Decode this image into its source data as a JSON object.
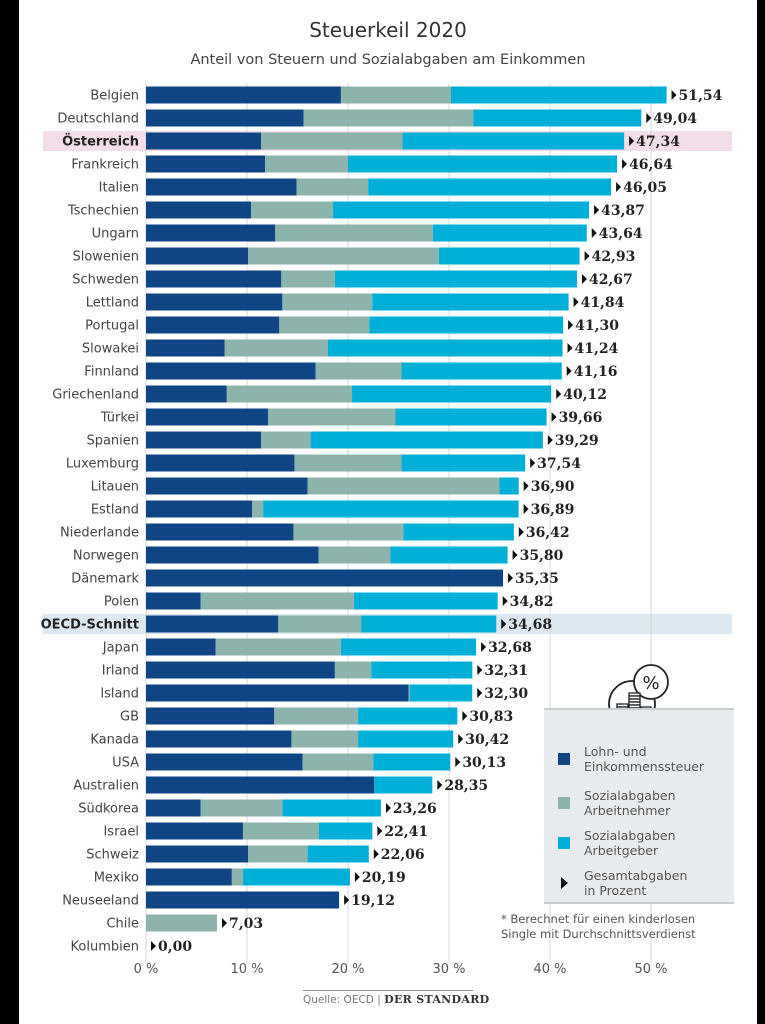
{
  "chart_data": {
    "type": "bar",
    "orientation": "horizontal",
    "stacked": true,
    "title": "Steuerkeil 2020",
    "subtitle": "Anteil von Steuern und Sozialabgaben am Einkommen",
    "xlabel": "",
    "ylabel": "",
    "xlim": [
      0,
      55
    ],
    "xticks": [
      0,
      10,
      20,
      30,
      40,
      50
    ],
    "xtick_labels": [
      "0 %",
      "10 %",
      "20 %",
      "30 %",
      "40 %",
      "50 %"
    ],
    "grid": true,
    "legend_position": "bottom-right",
    "categories": [
      "Belgien",
      "Deutschland",
      "Österreich",
      "Frankreich",
      "Italien",
      "Tschechien",
      "Ungarn",
      "Slowenien",
      "Schweden",
      "Lettland",
      "Portugal",
      "Slowakei",
      "Finnland",
      "Griechenland",
      "Türkei",
      "Spanien",
      "Luxemburg",
      "Litauen",
      "Estland",
      "Niederlande",
      "Norwegen",
      "Dänemark",
      "Polen",
      "OECD-Schnitt",
      "Japan",
      "Irland",
      "Island",
      "GB",
      "Kanada",
      "USA",
      "Australien",
      "Südkorea",
      "Israel",
      "Schweiz",
      "Mexiko",
      "Neuseeland",
      "Chile",
      "Kolumbien"
    ],
    "highlighted": {
      "Österreich": "#f2dde8",
      "OECD-Schnitt": "#dde9f1"
    },
    "series": [
      {
        "name": "Lohn- und Einkommenssteuer",
        "color": "#0f4584",
        "values": [
          19.3,
          15.6,
          11.4,
          11.8,
          14.9,
          10.4,
          12.8,
          10.1,
          13.4,
          13.5,
          13.2,
          7.8,
          16.8,
          8.0,
          12.1,
          11.4,
          14.7,
          16.0,
          10.5,
          14.6,
          17.1,
          35.35,
          5.4,
          13.1,
          6.9,
          18.7,
          26.0,
          12.7,
          14.4,
          15.5,
          22.6,
          5.4,
          9.6,
          10.1,
          8.5,
          19.12,
          0,
          0
        ]
      },
      {
        "name": "Sozialabgaben Arbeitnehmer",
        "color": "#8db3ad",
        "values": [
          10.9,
          16.8,
          14.0,
          8.2,
          7.1,
          8.1,
          15.6,
          18.9,
          5.3,
          8.9,
          8.9,
          10.2,
          8.5,
          12.4,
          12.6,
          4.9,
          10.6,
          19.0,
          1.1,
          10.9,
          7.1,
          0,
          15.2,
          8.2,
          12.4,
          3.6,
          0.1,
          8.3,
          6.6,
          7.0,
          0,
          8.1,
          7.5,
          5.9,
          1.1,
          0,
          7.03,
          0
        ]
      },
      {
        "name": "Sozialabgaben Arbeitgeber",
        "color": "#00afd8",
        "values": [
          21.34,
          16.64,
          21.94,
          26.64,
          24.05,
          25.37,
          15.24,
          13.93,
          23.97,
          19.44,
          19.2,
          23.24,
          15.86,
          19.72,
          14.96,
          22.99,
          12.24,
          1.9,
          25.29,
          10.92,
          11.6,
          0,
          14.22,
          13.38,
          13.38,
          10.01,
          6.2,
          9.83,
          9.42,
          7.63,
          5.75,
          9.76,
          5.31,
          6.06,
          10.59,
          0,
          0,
          0
        ]
      }
    ],
    "totals": [
      51.54,
      49.04,
      47.34,
      46.64,
      46.05,
      43.87,
      43.64,
      42.93,
      42.67,
      41.84,
      41.3,
      41.24,
      41.16,
      40.12,
      39.66,
      39.29,
      37.54,
      36.9,
      36.89,
      36.42,
      35.8,
      35.35,
      34.82,
      34.68,
      32.68,
      32.31,
      32.3,
      30.83,
      30.42,
      30.13,
      28.35,
      23.26,
      22.41,
      22.06,
      20.19,
      19.12,
      7.03,
      0.0
    ],
    "total_labels": [
      "51,54",
      "49,04",
      "47,34",
      "46,64",
      "46,05",
      "43,87",
      "43,64",
      "42,93",
      "42,67",
      "41,84",
      "41,30",
      "41,24",
      "41,16",
      "40,12",
      "39,66",
      "39,29",
      "37,54",
      "36,90",
      "36,89",
      "36,42",
      "35,80",
      "35,35",
      "34,82",
      "34,68",
      "32,68",
      "32,31",
      "32,30",
      "30,83",
      "30,42",
      "30,13",
      "28,35",
      "23,26",
      "22,41",
      "22,06",
      "20,19",
      "19,12",
      "7,03",
      "0,00"
    ]
  },
  "legend": {
    "items": [
      {
        "label": "Lohn- und\nEinkommenssteuer",
        "color": "#0f4584",
        "kind": "swatch"
      },
      {
        "label": "Sozialabgaben\nArbeitnehmer",
        "color": "#8db3ad",
        "kind": "swatch"
      },
      {
        "label": "Sozialabgaben\nArbeitgeber",
        "color": "#00afd8",
        "kind": "swatch"
      },
      {
        "label": "Gesamtabgaben\nin Prozent",
        "color": "#111111",
        "kind": "triangle"
      }
    ],
    "icon": "coins-percent-icon"
  },
  "footnote": "* Berechnet für einen kinderlosen\nSingle mit Durchschnittsverdienst",
  "source": {
    "label": "Quelle: OECD",
    "separator": "|",
    "brand": "DER STANDARD"
  }
}
